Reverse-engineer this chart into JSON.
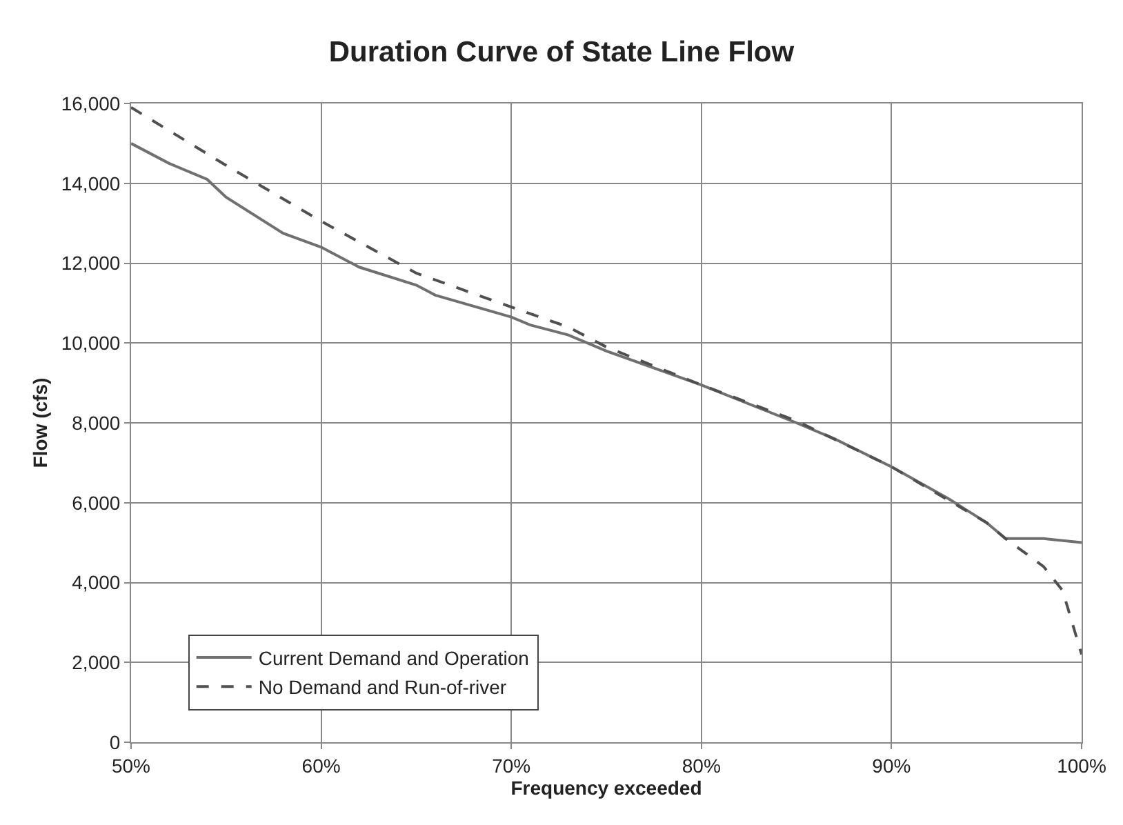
{
  "chart_data": {
    "type": "line",
    "title": "Duration Curve of State Line Flow",
    "xlabel": "Frequency exceeded",
    "ylabel": "Flow (cfs)",
    "xlim": [
      50,
      100
    ],
    "xticks": [
      {
        "value": 50,
        "label": "50%"
      },
      {
        "value": 60,
        "label": "60%"
      },
      {
        "value": 70,
        "label": "70%"
      },
      {
        "value": 80,
        "label": "80%"
      },
      {
        "value": 90,
        "label": "90%"
      },
      {
        "value": 100,
        "label": "100%"
      }
    ],
    "ylim": [
      0,
      16000
    ],
    "yticks": [
      {
        "value": 0,
        "label": "0"
      },
      {
        "value": 2000,
        "label": "2,000"
      },
      {
        "value": 4000,
        "label": "4,000"
      },
      {
        "value": 6000,
        "label": "6,000"
      },
      {
        "value": 8000,
        "label": "8,000"
      },
      {
        "value": 10000,
        "label": "10,000"
      },
      {
        "value": 12000,
        "label": "12,000"
      },
      {
        "value": 14000,
        "label": "14,000"
      },
      {
        "value": 16000,
        "label": "16,000"
      }
    ],
    "grid": true,
    "legend": "bottom left",
    "marker": "none",
    "series": [
      {
        "name": "Current Demand and Operation",
        "color": "#707070",
        "line_style": "solid",
        "x": [
          50,
          52,
          54,
          55,
          58,
          60,
          62,
          65,
          66,
          70,
          71,
          73,
          75,
          80,
          85,
          87,
          90,
          93,
          94,
          95,
          96,
          98,
          100
        ],
        "values": [
          15000,
          14500,
          14100,
          13650,
          12750,
          12400,
          11900,
          11450,
          11200,
          10650,
          10450,
          10200,
          9800,
          8950,
          8000,
          7600,
          6900,
          6100,
          5800,
          5500,
          5100,
          5100,
          5000
        ]
      },
      {
        "name": "No Demand and Run-of-river",
        "color": "#505050",
        "line_style": "dashed",
        "x": [
          50,
          55,
          60,
          65,
          70,
          73,
          75,
          80,
          85,
          90,
          95,
          96,
          98,
          99,
          99.5,
          100
        ],
        "values": [
          15900,
          14450,
          13050,
          11750,
          10900,
          10400,
          9900,
          8950,
          8050,
          6900,
          5500,
          5100,
          4400,
          3800,
          3000,
          2200
        ]
      }
    ]
  }
}
